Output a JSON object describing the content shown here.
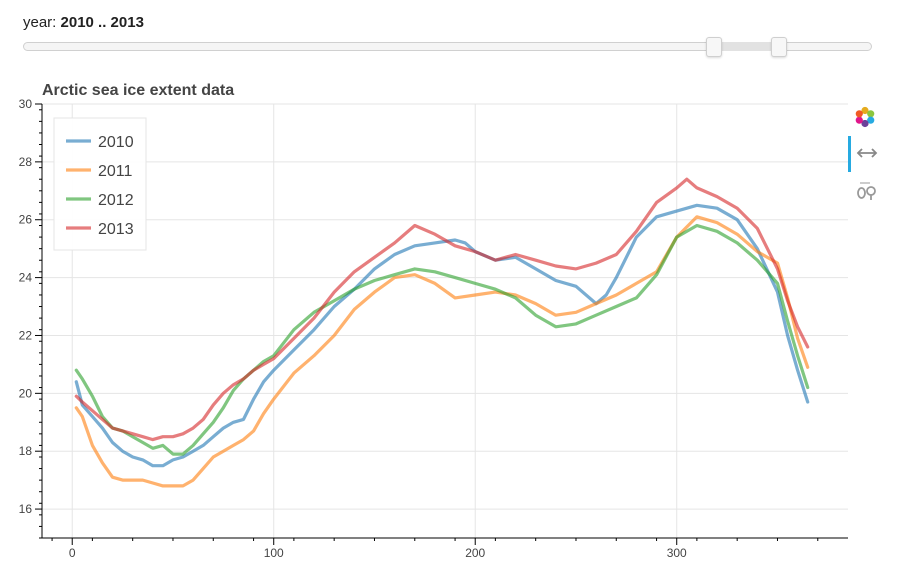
{
  "slider": {
    "label": "year: ",
    "value_text": "2010 .. 2013",
    "start": 2010,
    "end": 2013,
    "range_min": 1978,
    "range_max": 2017
  },
  "toolbar": {
    "logo": "bokeh-logo-icon",
    "pan": "box-pan-icon",
    "wheel_zoom": "wheel-zoom-icon"
  },
  "chart_data": {
    "type": "line",
    "title": "Arctic sea ice extent data",
    "xlabel": "",
    "ylabel": "",
    "xlim": [
      -15,
      385
    ],
    "ylim": [
      15,
      30
    ],
    "xticks": [
      0,
      100,
      200,
      300
    ],
    "yticks": [
      16,
      18,
      20,
      22,
      24,
      26,
      28,
      30
    ],
    "grid": true,
    "legend_position": "top-left",
    "series": [
      {
        "name": "2010",
        "color": "#1f77b4",
        "x": [
          2,
          5,
          10,
          15,
          20,
          25,
          30,
          35,
          40,
          45,
          50,
          55,
          60,
          65,
          70,
          75,
          80,
          85,
          90,
          95,
          100,
          110,
          120,
          130,
          140,
          150,
          160,
          170,
          180,
          190,
          195,
          200,
          210,
          220,
          230,
          240,
          250,
          260,
          265,
          270,
          280,
          290,
          300,
          310,
          320,
          330,
          340,
          350,
          355,
          360,
          365
        ],
        "y": [
          20.4,
          19.6,
          19.2,
          18.8,
          18.3,
          18.0,
          17.8,
          17.7,
          17.5,
          17.5,
          17.7,
          17.8,
          18.0,
          18.2,
          18.5,
          18.8,
          19.0,
          19.1,
          19.8,
          20.4,
          20.8,
          21.5,
          22.2,
          23.0,
          23.6,
          24.3,
          24.8,
          25.1,
          25.2,
          25.3,
          25.2,
          24.9,
          24.6,
          24.7,
          24.3,
          23.9,
          23.7,
          23.1,
          23.4,
          24.0,
          25.4,
          26.1,
          26.3,
          26.5,
          26.4,
          26.0,
          25.0,
          23.5,
          22.0,
          20.8,
          19.7
        ]
      },
      {
        "name": "2011",
        "color": "#ff7f0e",
        "x": [
          2,
          5,
          10,
          15,
          20,
          25,
          30,
          35,
          40,
          45,
          50,
          55,
          60,
          65,
          70,
          75,
          80,
          85,
          90,
          95,
          100,
          110,
          120,
          130,
          140,
          150,
          160,
          170,
          180,
          190,
          200,
          210,
          220,
          230,
          240,
          250,
          260,
          270,
          280,
          290,
          300,
          310,
          320,
          330,
          340,
          350,
          355,
          360,
          365
        ],
        "y": [
          19.5,
          19.2,
          18.2,
          17.6,
          17.1,
          17.0,
          17.0,
          17.0,
          16.9,
          16.8,
          16.8,
          16.8,
          17.0,
          17.4,
          17.8,
          18.0,
          18.2,
          18.4,
          18.7,
          19.3,
          19.8,
          20.7,
          21.3,
          22.0,
          22.9,
          23.5,
          24.0,
          24.1,
          23.8,
          23.3,
          23.4,
          23.5,
          23.4,
          23.1,
          22.7,
          22.8,
          23.1,
          23.4,
          23.8,
          24.2,
          25.4,
          26.1,
          25.9,
          25.5,
          24.9,
          24.5,
          23.3,
          21.9,
          20.9
        ]
      },
      {
        "name": "2012",
        "color": "#2ca02c",
        "x": [
          2,
          5,
          10,
          15,
          20,
          25,
          30,
          35,
          40,
          45,
          50,
          55,
          60,
          65,
          70,
          75,
          80,
          85,
          90,
          95,
          100,
          110,
          120,
          130,
          140,
          150,
          160,
          170,
          180,
          190,
          200,
          210,
          220,
          230,
          240,
          250,
          260,
          270,
          280,
          290,
          300,
          310,
          320,
          330,
          340,
          350,
          355,
          360,
          365
        ],
        "y": [
          20.8,
          20.5,
          19.9,
          19.2,
          18.8,
          18.7,
          18.5,
          18.3,
          18.1,
          18.2,
          17.9,
          17.9,
          18.2,
          18.6,
          19.0,
          19.5,
          20.1,
          20.5,
          20.8,
          21.1,
          21.3,
          22.2,
          22.8,
          23.2,
          23.6,
          23.9,
          24.1,
          24.3,
          24.2,
          24.0,
          23.8,
          23.6,
          23.3,
          22.7,
          22.3,
          22.4,
          22.7,
          23.0,
          23.3,
          24.1,
          25.4,
          25.8,
          25.6,
          25.2,
          24.6,
          23.8,
          22.5,
          21.3,
          20.2
        ]
      },
      {
        "name": "2013",
        "color": "#d62728",
        "x": [
          2,
          5,
          10,
          15,
          20,
          25,
          30,
          35,
          40,
          45,
          50,
          55,
          60,
          65,
          70,
          75,
          80,
          85,
          90,
          95,
          100,
          110,
          120,
          130,
          140,
          150,
          160,
          170,
          180,
          190,
          200,
          210,
          220,
          230,
          240,
          250,
          260,
          270,
          280,
          290,
          300,
          305,
          310,
          320,
          330,
          340,
          350,
          355,
          360,
          365
        ],
        "y": [
          19.9,
          19.7,
          19.4,
          19.1,
          18.8,
          18.7,
          18.6,
          18.5,
          18.4,
          18.5,
          18.5,
          18.6,
          18.8,
          19.1,
          19.6,
          20.0,
          20.3,
          20.5,
          20.8,
          21.0,
          21.2,
          21.9,
          22.6,
          23.5,
          24.2,
          24.7,
          25.2,
          25.8,
          25.5,
          25.1,
          24.9,
          24.6,
          24.8,
          24.6,
          24.4,
          24.3,
          24.5,
          24.8,
          25.6,
          26.6,
          27.1,
          27.4,
          27.1,
          26.8,
          26.4,
          25.7,
          24.3,
          23.2,
          22.3,
          21.6
        ]
      }
    ]
  }
}
